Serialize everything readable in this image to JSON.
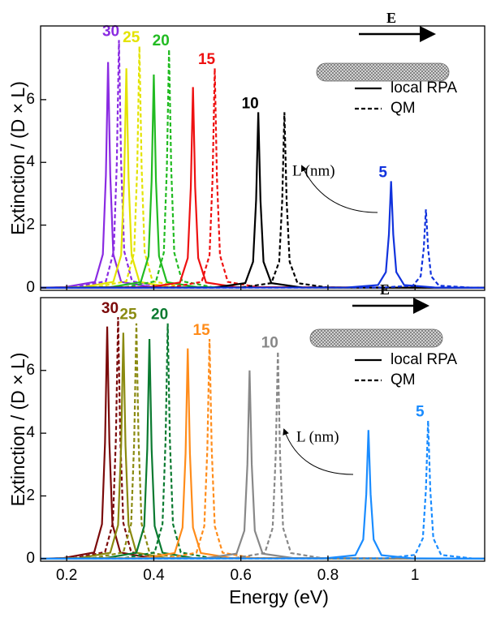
{
  "chart_data": [
    {
      "type": "line",
      "ylabel": "Extinction / (D × L)",
      "xlim": [
        0.14,
        1.16
      ],
      "ylim": [
        -0.08,
        8.35
      ],
      "xticks": [
        0.2,
        0.4,
        0.6,
        0.8,
        1
      ],
      "yticks": [
        0,
        2,
        4,
        6
      ],
      "xtick_labels": false,
      "field_label": "E",
      "annotation": "L (nm)",
      "legend": [
        {
          "label": "local RPA",
          "style": "solid"
        },
        {
          "label": "QM",
          "style": "dashed"
        }
      ],
      "groups": [
        {
          "label": "30",
          "color": "#8a2be2",
          "series": [
            {
              "style": "solid",
              "x": [
                0.14,
                0.195,
                0.265,
                0.283,
                0.29,
                0.295,
                0.3,
                0.307,
                0.325,
                0.395,
                1.16
              ],
              "values": [
                0,
                0.02,
                0.19,
                1.07,
                3.6,
                7.2,
                3.6,
                1.07,
                0.19,
                0.02,
                0
              ]
            },
            {
              "style": "dashed",
              "x": [
                0.14,
                0.22,
                0.29,
                0.308,
                0.315,
                0.32,
                0.325,
                0.332,
                0.35,
                0.42,
                1.16
              ],
              "values": [
                0,
                0.02,
                0.21,
                1.17,
                3.95,
                7.9,
                3.95,
                1.17,
                0.21,
                0.02,
                0
              ]
            }
          ]
        },
        {
          "label": "25",
          "color": "#e3e300",
          "series": [
            {
              "style": "solid",
              "x": [
                0.14,
                0.237,
                0.307,
                0.325,
                0.332,
                0.337,
                0.342,
                0.349,
                0.367,
                0.437,
                1.16
              ],
              "values": [
                0,
                0.02,
                0.19,
                1.04,
                3.5,
                7,
                3.5,
                1.04,
                0.19,
                0.02,
                0
              ]
            },
            {
              "style": "dashed",
              "x": [
                0.14,
                0.267,
                0.337,
                0.355,
                0.362,
                0.367,
                0.372,
                0.379,
                0.397,
                0.467,
                1.16
              ],
              "values": [
                0,
                0.02,
                0.21,
                1.14,
                3.85,
                7.7,
                3.85,
                1.14,
                0.21,
                0.02,
                0
              ]
            }
          ]
        },
        {
          "label": "20",
          "color": "#22bb22",
          "series": [
            {
              "style": "solid",
              "x": [
                0.14,
                0.3,
                0.37,
                0.388,
                0.395,
                0.4,
                0.405,
                0.412,
                0.43,
                0.5,
                1.16
              ],
              "values": [
                0,
                0.02,
                0.18,
                1.01,
                3.4,
                6.8,
                3.4,
                1.01,
                0.18,
                0.02,
                0
              ]
            },
            {
              "style": "dashed",
              "x": [
                0.14,
                0.335,
                0.405,
                0.423,
                0.43,
                0.435,
                0.44,
                0.447,
                0.465,
                0.535,
                1.16
              ],
              "values": [
                0,
                0.02,
                0.21,
                1.12,
                3.8,
                7.6,
                3.8,
                1.12,
                0.21,
                0.02,
                0
              ]
            }
          ]
        },
        {
          "label": "15",
          "color": "#ee1111",
          "series": [
            {
              "style": "solid",
              "x": [
                0.14,
                0.39,
                0.46,
                0.478,
                0.485,
                0.49,
                0.495,
                0.502,
                0.52,
                0.59,
                1.16
              ],
              "values": [
                0,
                0.02,
                0.17,
                0.95,
                3.2,
                6.4,
                3.2,
                0.95,
                0.17,
                0.02,
                0
              ]
            },
            {
              "style": "dashed",
              "x": [
                0.14,
                0.44,
                0.51,
                0.528,
                0.535,
                0.54,
                0.545,
                0.552,
                0.57,
                0.64,
                1.16
              ],
              "values": [
                0,
                0.02,
                0.19,
                1.04,
                3.5,
                7,
                3.5,
                1.04,
                0.19,
                0.02,
                0
              ]
            }
          ]
        },
        {
          "label": "10",
          "color": "#000000",
          "series": [
            {
              "style": "solid",
              "x": [
                0.14,
                0.54,
                0.61,
                0.628,
                0.635,
                0.64,
                0.645,
                0.652,
                0.67,
                0.74,
                1.16
              ],
              "values": [
                0,
                0.01,
                0.15,
                0.83,
                2.8,
                5.6,
                2.8,
                0.83,
                0.15,
                0.01,
                0
              ]
            },
            {
              "style": "dashed",
              "x": [
                0.14,
                0.6,
                0.67,
                0.688,
                0.695,
                0.7,
                0.705,
                0.712,
                0.73,
                0.8,
                1.16
              ],
              "values": [
                0,
                0.01,
                0.15,
                0.83,
                2.8,
                5.6,
                2.8,
                0.83,
                0.15,
                0.01,
                0
              ]
            }
          ]
        },
        {
          "label": "5",
          "color": "#1133dd",
          "series": [
            {
              "style": "solid",
              "x": [
                0.14,
                0.845,
                0.915,
                0.933,
                0.94,
                0.945,
                0.95,
                0.957,
                0.975,
                1.045,
                1.16
              ],
              "values": [
                0,
                0.01,
                0.09,
                0.5,
                1.7,
                3.4,
                1.7,
                0.5,
                0.09,
                0.01,
                0
              ]
            },
            {
              "style": "dashed",
              "x": [
                0.14,
                0.925,
                0.995,
                1.013,
                1.02,
                1.025,
                1.03,
                1.037,
                1.055,
                1.125,
                1.16
              ],
              "values": [
                0,
                0.01,
                0.07,
                0.37,
                1.25,
                2.5,
                1.25,
                0.37,
                0.07,
                0.01,
                0
              ]
            }
          ]
        }
      ]
    },
    {
      "type": "line",
      "ylabel": "Extinction / (D × L)",
      "xlabel": "Energy (eV)",
      "xlim": [
        0.14,
        1.16
      ],
      "ylim": [
        -0.08,
        8.32
      ],
      "xticks": [
        0.2,
        0.4,
        0.6,
        0.8,
        1
      ],
      "yticks": [
        0,
        2,
        4,
        6
      ],
      "xtick_labels": true,
      "field_label": "E",
      "annotation": "L (nm)",
      "legend": [
        {
          "label": "local RPA",
          "style": "solid"
        },
        {
          "label": "QM",
          "style": "dashed"
        }
      ],
      "groups": [
        {
          "label": "30",
          "color": "#7b0a0a",
          "series": [
            {
              "style": "solid",
              "x": [
                0.14,
                0.193,
                0.263,
                0.281,
                0.288,
                0.293,
                0.298,
                0.305,
                0.323,
                0.393,
                1.16
              ],
              "values": [
                0,
                0.02,
                0.2,
                1.1,
                3.7,
                7.4,
                3.7,
                1.1,
                0.2,
                0.02,
                0
              ]
            },
            {
              "style": "dashed",
              "x": [
                0.14,
                0.218,
                0.288,
                0.306,
                0.313,
                0.318,
                0.323,
                0.33,
                0.348,
                0.418,
                1.16
              ],
              "values": [
                0,
                0.02,
                0.21,
                1.14,
                3.85,
                7.7,
                3.85,
                1.14,
                0.21,
                0.02,
                0
              ]
            }
          ]
        },
        {
          "label": "25",
          "color": "#8a8a10",
          "series": [
            {
              "style": "solid",
              "x": [
                0.14,
                0.23,
                0.3,
                0.318,
                0.325,
                0.33,
                0.335,
                0.342,
                0.36,
                0.43,
                1.16
              ],
              "values": [
                0,
                0.02,
                0.19,
                1.07,
                3.6,
                7.2,
                3.6,
                1.07,
                0.19,
                0.02,
                0
              ]
            },
            {
              "style": "dashed",
              "x": [
                0.14,
                0.26,
                0.33,
                0.348,
                0.355,
                0.36,
                0.365,
                0.372,
                0.39,
                0.46,
                1.16
              ],
              "values": [
                0,
                0.02,
                0.2,
                1.11,
                3.75,
                7.5,
                3.75,
                1.11,
                0.2,
                0.02,
                0
              ]
            }
          ]
        },
        {
          "label": "20",
          "color": "#0a7a30",
          "series": [
            {
              "style": "solid",
              "x": [
                0.14,
                0.29,
                0.36,
                0.378,
                0.385,
                0.39,
                0.395,
                0.402,
                0.42,
                0.49,
                1.16
              ],
              "values": [
                0,
                0.02,
                0.19,
                1.04,
                3.5,
                7,
                3.5,
                1.04,
                0.19,
                0.02,
                0
              ]
            },
            {
              "style": "dashed",
              "x": [
                0.14,
                0.332,
                0.402,
                0.42,
                0.427,
                0.432,
                0.437,
                0.444,
                0.462,
                0.532,
                1.16
              ],
              "values": [
                0,
                0.02,
                0.2,
                1.11,
                3.75,
                7.5,
                3.75,
                1.11,
                0.2,
                0.02,
                0
              ]
            }
          ]
        },
        {
          "label": "15",
          "color": "#ff8c1a",
          "series": [
            {
              "style": "solid",
              "x": [
                0.14,
                0.378,
                0.448,
                0.466,
                0.473,
                0.478,
                0.483,
                0.49,
                0.508,
                0.578,
                1.16
              ],
              "values": [
                0,
                0.02,
                0.18,
                0.99,
                3.35,
                6.7,
                3.35,
                0.99,
                0.18,
                0.02,
                0
              ]
            },
            {
              "style": "dashed",
              "x": [
                0.14,
                0.428,
                0.498,
                0.516,
                0.523,
                0.528,
                0.533,
                0.54,
                0.558,
                0.628,
                1.16
              ],
              "values": [
                0,
                0.02,
                0.19,
                1.04,
                3.5,
                7,
                3.5,
                1.04,
                0.19,
                0.02,
                0
              ]
            }
          ]
        },
        {
          "label": "10",
          "color": "#888888",
          "series": [
            {
              "style": "solid",
              "x": [
                0.14,
                0.52,
                0.59,
                0.608,
                0.615,
                0.62,
                0.625,
                0.632,
                0.65,
                0.72,
                1.16
              ],
              "values": [
                0,
                0.02,
                0.16,
                0.89,
                3,
                6,
                3,
                0.89,
                0.16,
                0.02,
                0
              ]
            },
            {
              "style": "dashed",
              "x": [
                0.14,
                0.585,
                0.655,
                0.673,
                0.68,
                0.685,
                0.69,
                0.697,
                0.715,
                0.785,
                1.16
              ],
              "values": [
                0,
                0.02,
                0.18,
                0.98,
                3.3,
                6.6,
                3.3,
                0.98,
                0.18,
                0.02,
                0
              ]
            }
          ]
        },
        {
          "label": "5",
          "color": "#1a8cff",
          "series": [
            {
              "style": "solid",
              "x": [
                0.14,
                0.793,
                0.863,
                0.881,
                0.888,
                0.893,
                0.898,
                0.905,
                0.923,
                0.993,
                1.16
              ],
              "values": [
                0,
                0.01,
                0.11,
                0.61,
                2.05,
                4.1,
                2.05,
                0.61,
                0.11,
                0.01,
                0
              ]
            },
            {
              "style": "dashed",
              "x": [
                0.14,
                0.93,
                1.0,
                1.018,
                1.025,
                1.03,
                1.035,
                1.042,
                1.06,
                1.13,
                1.16
              ],
              "values": [
                0,
                0.01,
                0.12,
                0.65,
                2.2,
                4.4,
                2.2,
                0.65,
                0.12,
                0.01,
                0
              ]
            }
          ]
        }
      ]
    }
  ]
}
